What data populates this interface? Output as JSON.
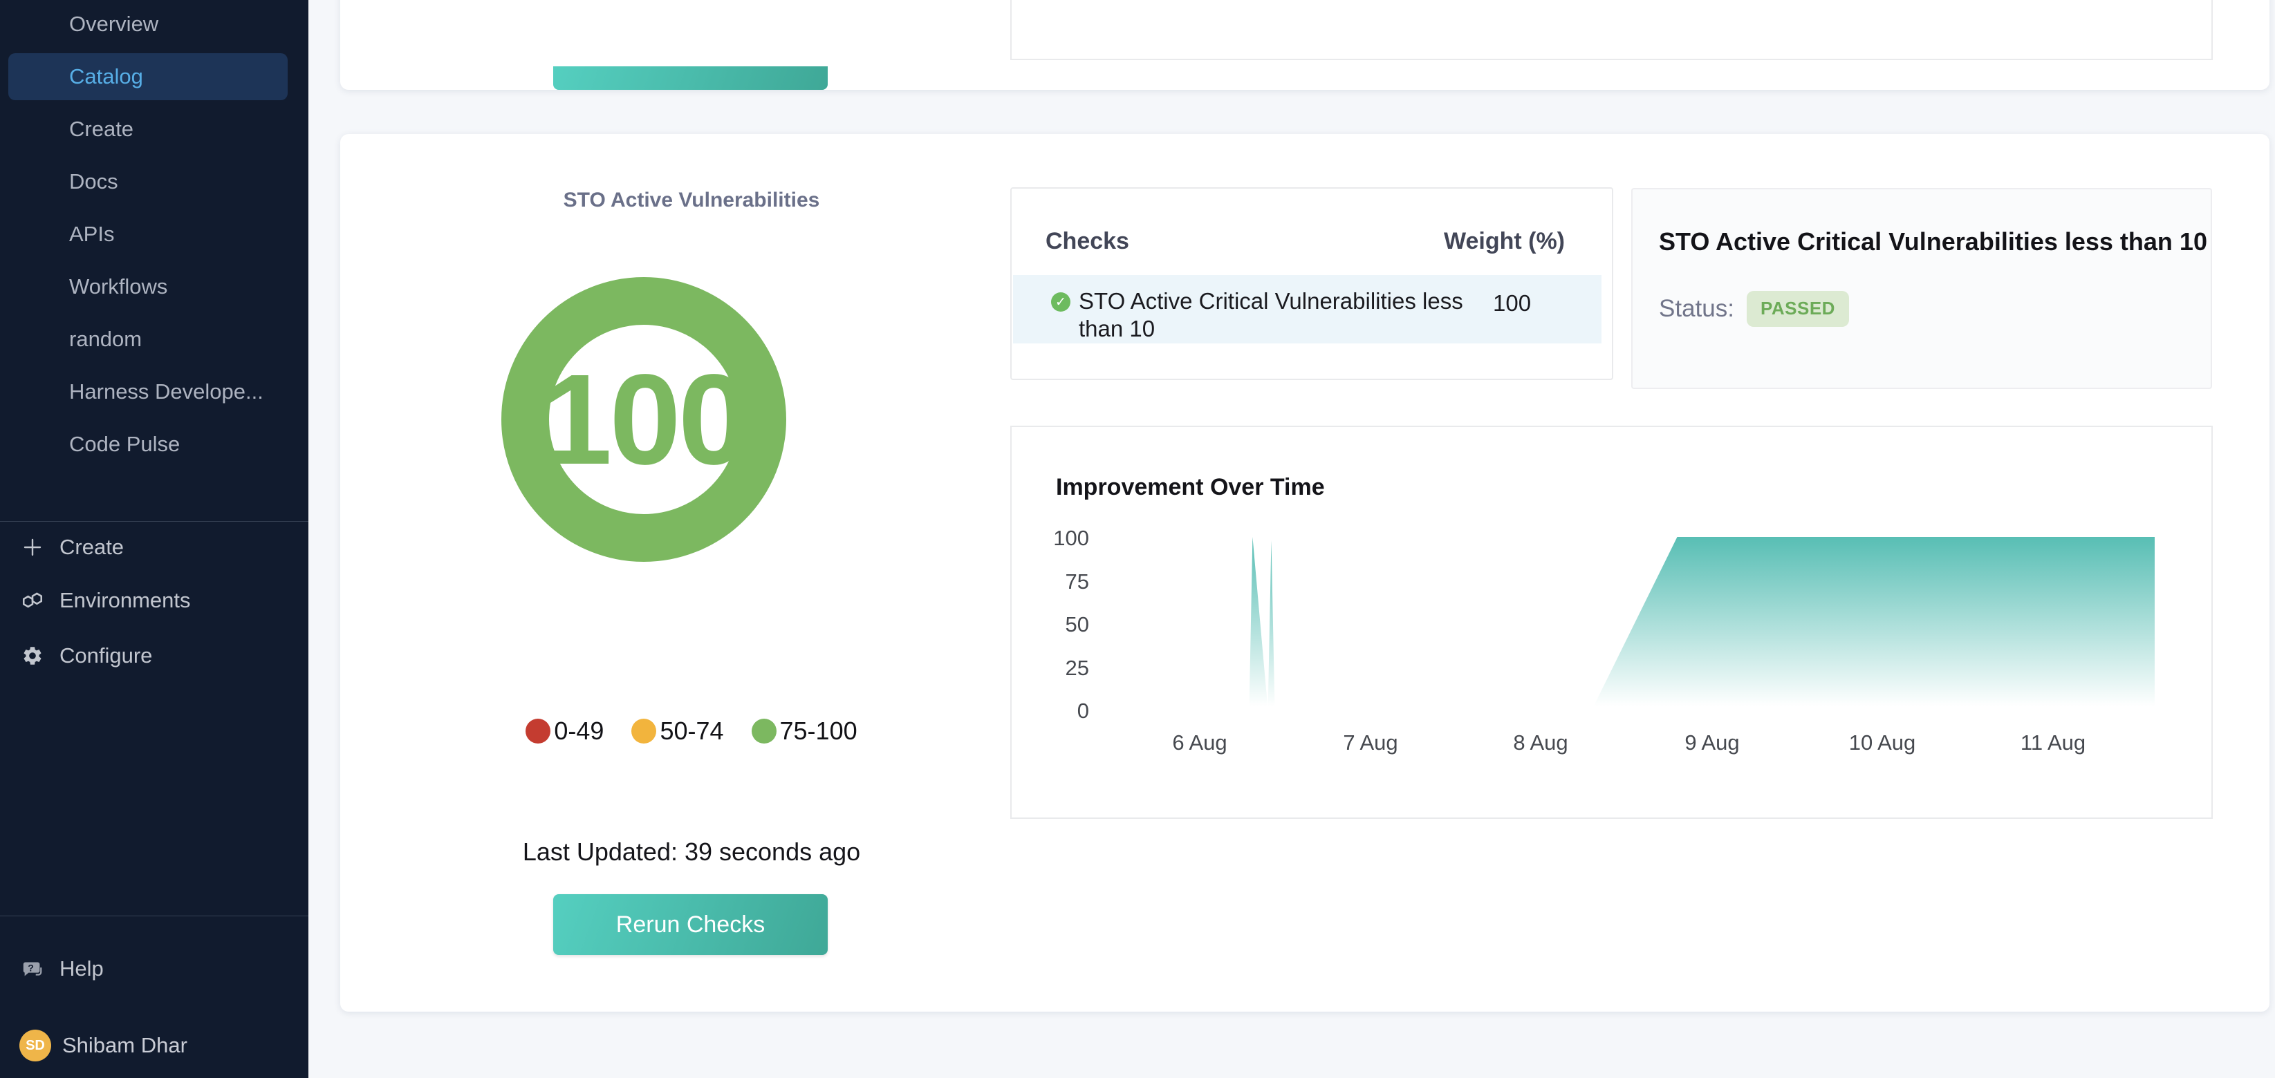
{
  "sidebar": {
    "nav_items": [
      {
        "label": "Overview",
        "selected": false
      },
      {
        "label": "Catalog",
        "selected": true
      },
      {
        "label": "Create",
        "selected": false
      },
      {
        "label": "Docs",
        "selected": false
      },
      {
        "label": "APIs",
        "selected": false
      },
      {
        "label": "Workflows",
        "selected": false
      },
      {
        "label": "random",
        "selected": false
      },
      {
        "label": "Harness Develope...",
        "selected": false
      },
      {
        "label": "Code Pulse",
        "selected": false
      }
    ],
    "actions": [
      {
        "icon": "plus-icon",
        "label": "Create"
      },
      {
        "icon": "environments-icon",
        "label": "Environments"
      },
      {
        "icon": "gear-icon",
        "label": "Configure"
      }
    ],
    "help_label": "Help",
    "user": {
      "initials": "SD",
      "name": "Shibam Dhar"
    }
  },
  "scorecard": {
    "title": "STO Active Vulnerabilities",
    "score": "100",
    "legend": [
      {
        "label": "0-49",
        "color": "#c43c30"
      },
      {
        "label": "50-74",
        "color": "#f2b43d"
      },
      {
        "label": "75-100",
        "color": "#7cb860"
      }
    ],
    "last_updated": "Last Updated: 39 seconds ago",
    "rerun_label": "Rerun Checks"
  },
  "checks_table": {
    "headers": [
      "Checks",
      "Weight (%)"
    ],
    "rows": [
      {
        "check": "STO Active Critical Vulnerabilities less than 10",
        "weight": "100",
        "status_icon": "check-pass-icon"
      }
    ]
  },
  "check_detail": {
    "title": "STO Active Critical Vulnerabilities less than 10",
    "status_label": "Status:",
    "status_value": "PASSED"
  },
  "chart_data": {
    "type": "area",
    "title": "Improvement Over Time",
    "xlabel": "",
    "ylabel": "",
    "x_ticks": [
      "6 Aug",
      "7 Aug",
      "8 Aug",
      "9 Aug",
      "10 Aug",
      "11 Aug"
    ],
    "y_ticks": [
      100,
      75,
      50,
      25,
      0
    ],
    "ylim": [
      0,
      100
    ],
    "x_domain": [
      5.4,
      11.6
    ],
    "grid": false,
    "legend_position": "none",
    "area_color": "#58beb4",
    "series": [
      {
        "name": "score",
        "points": [
          [
            5.4,
            0
          ],
          [
            6.29,
            0
          ],
          [
            6.31,
            100
          ],
          [
            6.4,
            0
          ],
          [
            6.42,
            98
          ],
          [
            6.44,
            0
          ],
          [
            8.3,
            0
          ],
          [
            8.8,
            100
          ],
          [
            11.6,
            100
          ]
        ]
      }
    ]
  },
  "colors": {
    "sidebar_bg": "#111b2e",
    "sidebar_selected_bg": "#1d3457",
    "sidebar_selected_text": "#57aee6",
    "button_teal_start": "#55cfc0",
    "button_teal_end": "#3fa897",
    "score_green": "#7cb860",
    "check_pass": "#6dbb5f",
    "row_highlight": "#ecf5fa",
    "badge_bg": "#dcead2",
    "badge_text": "#6cab58",
    "avatar_bg": "#efb549",
    "main_bg": "#f5f7fa"
  }
}
